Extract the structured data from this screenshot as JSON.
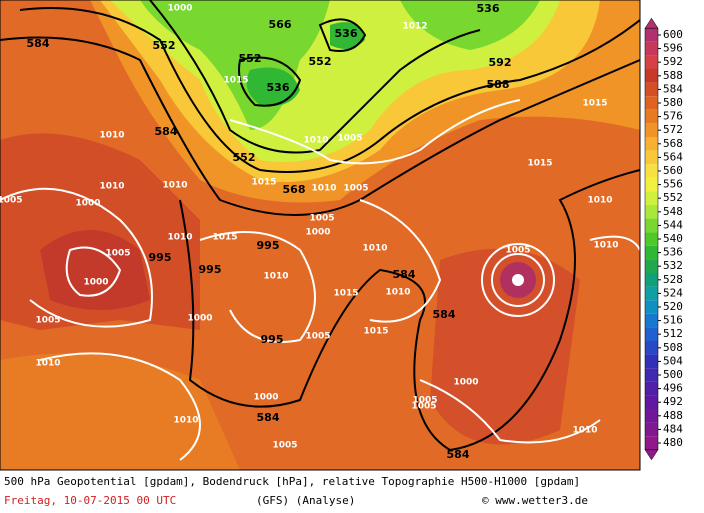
{
  "map": {
    "contour_labels": [
      "584",
      "552",
      "566",
      "536",
      "552",
      "536",
      "552",
      "1000",
      "1015",
      "1012",
      "536",
      "592",
      "588",
      "584",
      "1010",
      "1010",
      "552",
      "1010",
      "1005",
      "1015",
      "1010",
      "1005",
      "1000",
      "1005",
      "568",
      "1010",
      "1005",
      "995",
      "1000",
      "1005",
      "1010",
      "1015",
      "995",
      "1010",
      "1000",
      "1005",
      "1015",
      "995",
      "1010",
      "1010",
      "1015",
      "1010",
      "584",
      "1015",
      "1005",
      "584",
      "1000",
      "584",
      "1005",
      "1010",
      "995",
      "1000",
      "1010",
      "1005",
      "1000",
      "584",
      "1005",
      "1005",
      "1010",
      "1010",
      "1015"
    ],
    "colorbar": {
      "labels": [
        "600",
        "596",
        "592",
        "588",
        "584",
        "580",
        "576",
        "572",
        "568",
        "564",
        "560",
        "556",
        "552",
        "548",
        "544",
        "540",
        "536",
        "532",
        "528",
        "524",
        "520",
        "516",
        "512",
        "508",
        "504",
        "500",
        "496",
        "492",
        "488",
        "484",
        "480"
      ],
      "colors": [
        "#b03070",
        "#c8385c",
        "#d84048",
        "#c83828",
        "#d44e26",
        "#e06222",
        "#e87a22",
        "#f09428",
        "#f8b030",
        "#f8c838",
        "#f8e040",
        "#f0f040",
        "#d0f040",
        "#a8e838",
        "#78d830",
        "#50c828",
        "#30b834",
        "#20a850",
        "#10a07c",
        "#10a0a4",
        "#1090c0",
        "#1878d0",
        "#2060d0",
        "#2848c8",
        "#3030b8",
        "#4028b0",
        "#5020a8",
        "#6018a0",
        "#701898",
        "#801890",
        "#901888"
      ]
    },
    "caption": "500 hPa Geopotential [gpdam], Bodendruck [hPa], relative Topographie H500-H1000 [gpdam]",
    "date": "Freitag, 10-07-2015  00 UTC",
    "model": "(GFS)  (Analyse)",
    "credit": "© www.wetter3.de"
  }
}
